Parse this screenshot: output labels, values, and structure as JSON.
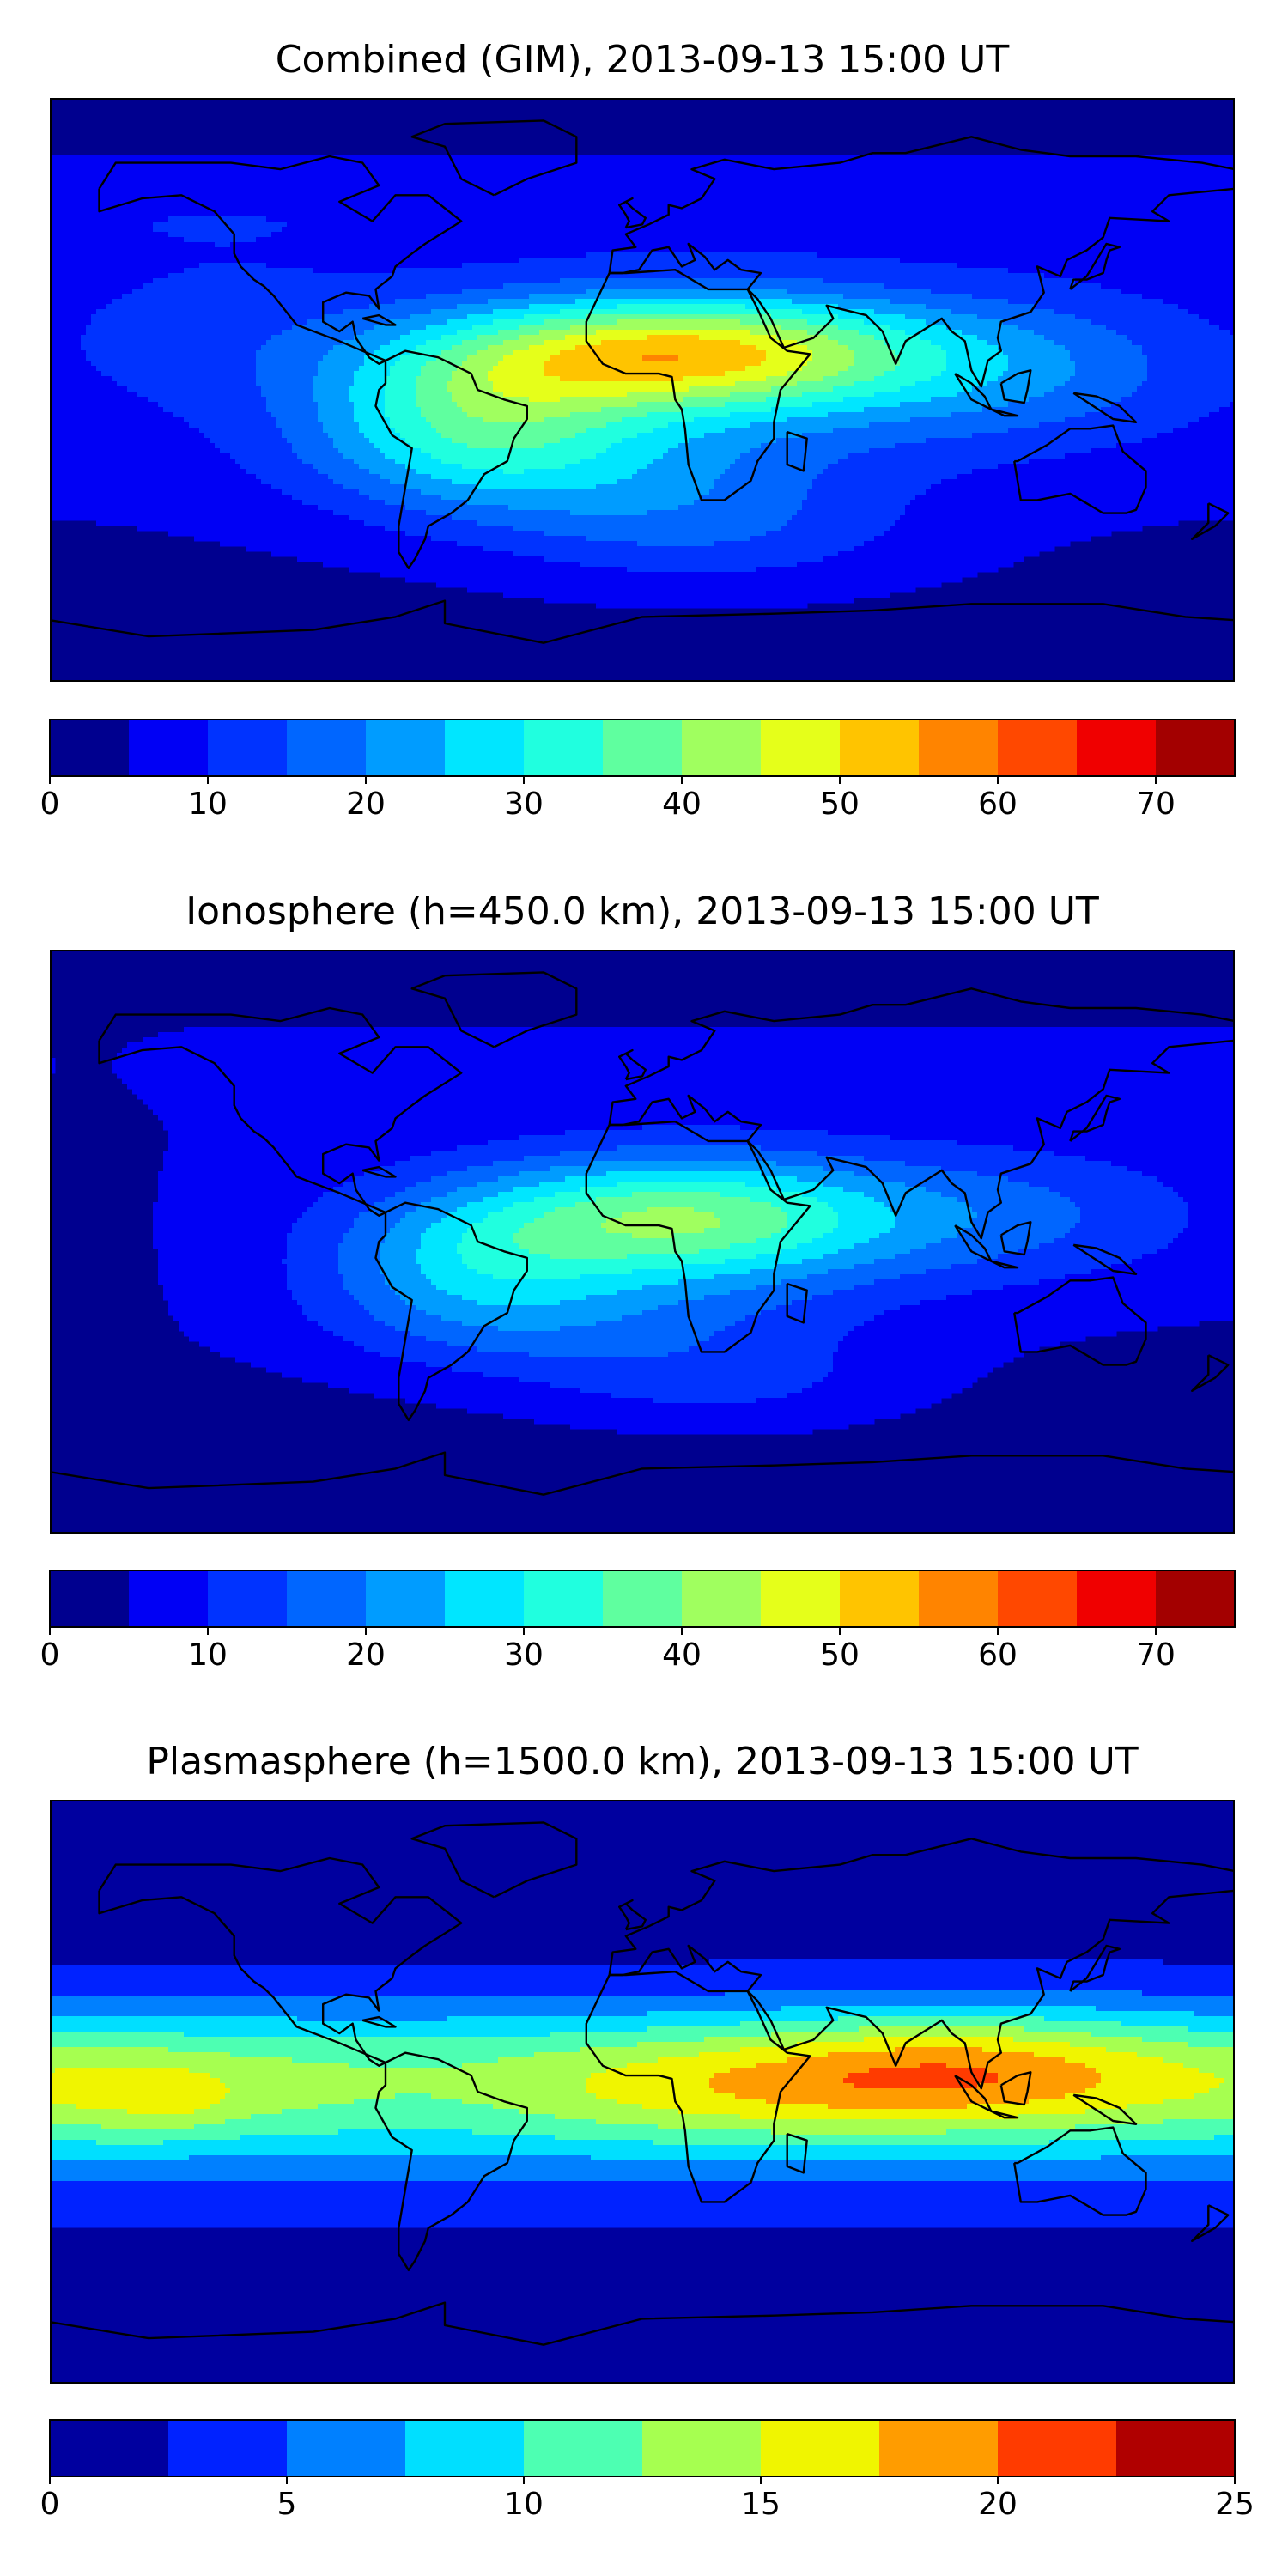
{
  "panels": [
    {
      "title": "Combined (GIM), 2013-09-13 15:00 UT",
      "scheme": "combined",
      "colorbar": {
        "min": 0,
        "max": 75,
        "boundaries": [
          0,
          5,
          10,
          15,
          20,
          25,
          30,
          35,
          40,
          45,
          50,
          55,
          60,
          65,
          70,
          75
        ],
        "colors": [
          "#00008f",
          "#0000f5",
          "#0033ff",
          "#0066ff",
          "#009cff",
          "#00e6ff",
          "#20ffdf",
          "#5fff9f",
          "#a0ff5f",
          "#e5ff1a",
          "#ffc400",
          "#ff8400",
          "#ff4800",
          "#f00000",
          "#a30000"
        ],
        "ticks": [
          0,
          10,
          20,
          30,
          40,
          50,
          60,
          70
        ],
        "tick_labels": [
          "0",
          "10",
          "20",
          "30",
          "40",
          "50",
          "60",
          "70"
        ]
      }
    },
    {
      "title": "Ionosphere  (h=450.0 km), 2013-09-13 15:00 UT",
      "scheme": "ionosphere",
      "colorbar": {
        "min": 0,
        "max": 75,
        "boundaries": [
          0,
          5,
          10,
          15,
          20,
          25,
          30,
          35,
          40,
          45,
          50,
          55,
          60,
          65,
          70,
          75
        ],
        "colors": [
          "#00008f",
          "#0000f5",
          "#0033ff",
          "#0066ff",
          "#009cff",
          "#00e6ff",
          "#20ffdf",
          "#5fff9f",
          "#a0ff5f",
          "#e5ff1a",
          "#ffc400",
          "#ff8400",
          "#ff4800",
          "#f00000",
          "#a30000"
        ],
        "ticks": [
          0,
          10,
          20,
          30,
          40,
          50,
          60,
          70
        ],
        "tick_labels": [
          "0",
          "10",
          "20",
          "30",
          "40",
          "50",
          "60",
          "70"
        ]
      }
    },
    {
      "title": "Plasmasphere (h=1500.0 km), 2013-09-13 15:00 UT",
      "scheme": "plasmasphere",
      "colorbar": {
        "min": 0,
        "max": 25,
        "boundaries": [
          0,
          2.5,
          5,
          7.5,
          10,
          12.5,
          15,
          17.5,
          20,
          22.5,
          25
        ],
        "colors": [
          "#00009f",
          "#0022ff",
          "#0080ff",
          "#00dfff",
          "#4dffb2",
          "#a6ff50",
          "#f0f500",
          "#ff9c00",
          "#ff3b00",
          "#b00000"
        ],
        "ticks": [
          0,
          5,
          10,
          15,
          20,
          25
        ],
        "tick_labels": [
          "0",
          "5",
          "10",
          "15",
          "20",
          "25"
        ]
      }
    }
  ]
}
